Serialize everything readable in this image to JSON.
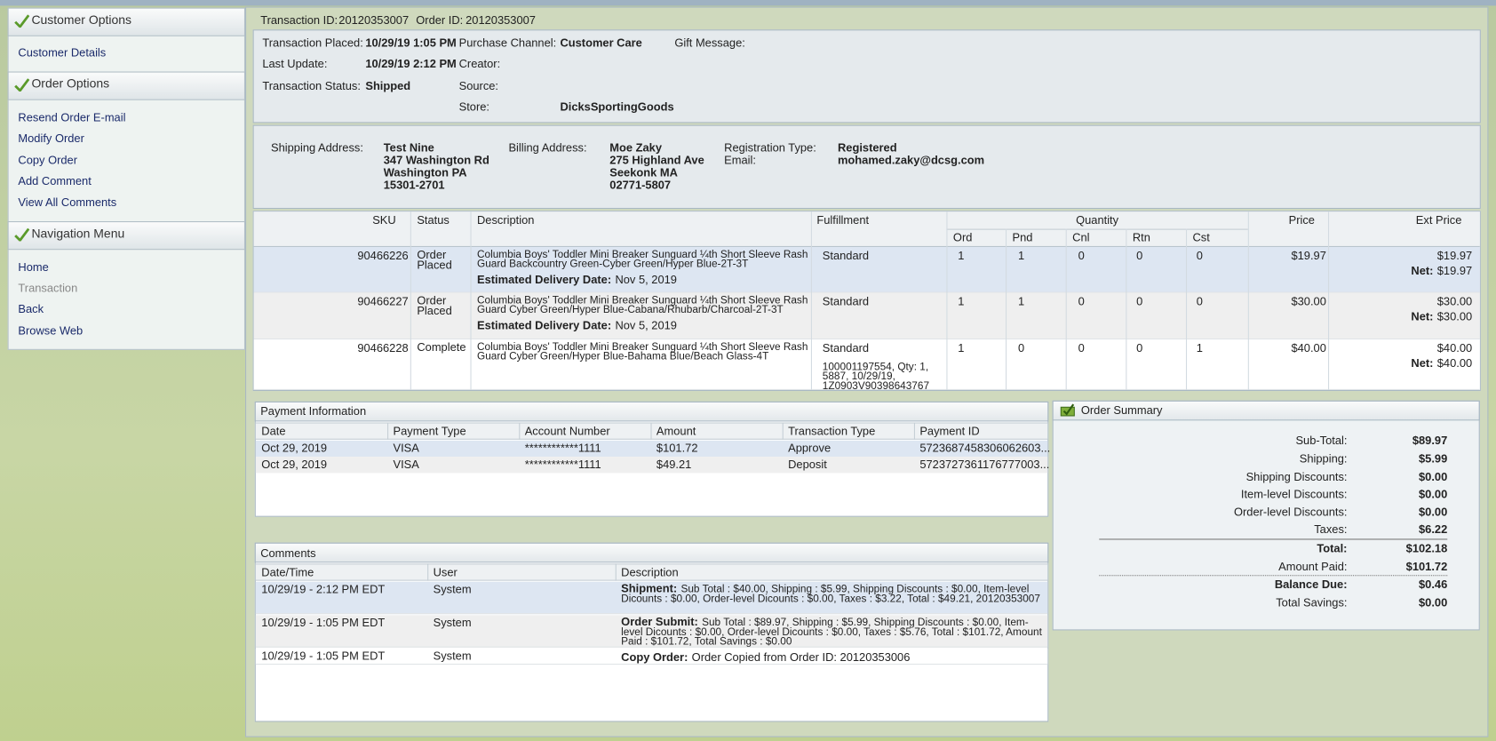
{
  "sidebar": [
    {
      "title": "Customer Options",
      "items": [
        "Customer Details"
      ]
    },
    {
      "title": "Order Options",
      "items": [
        "Resend Order E-mail",
        "Modify Order",
        "Copy Order",
        "Add Comment",
        "View All Comments"
      ]
    },
    {
      "title": "Navigation Menu",
      "items": [
        "Home",
        "Transaction",
        "Back",
        "Browse Web"
      ]
    }
  ],
  "header": {
    "transaction_id_label": "Transaction ID:",
    "transaction_id": "20120353007",
    "order_id_label": "Order ID:",
    "order_id": "20120353007"
  },
  "details": {
    "transaction_placed": {
      "label": "Transaction Placed:",
      "value": "10/29/19 1:05 PM"
    },
    "last_update": {
      "label": "Last Update:",
      "value": "10/29/19 2:12 PM"
    },
    "transaction_status": {
      "label": "Transaction Status:",
      "value": "Shipped"
    },
    "purchase_channel": {
      "label": "Purchase Channel:",
      "value": "Customer Care"
    },
    "creator": {
      "label": "Creator:"
    },
    "source": {
      "label": "Source:"
    },
    "store": {
      "label": "Store:",
      "value": "DicksSportingGoods"
    },
    "gift_message": {
      "label": "Gift Message:"
    }
  },
  "addresses": {
    "shipping": {
      "label": "Shipping Address:",
      "lines": [
        "Test Nine",
        "347 Washington Rd",
        "Washington PA",
        "15301-2701"
      ]
    },
    "billing": {
      "label": "Billing Address:",
      "lines": [
        "Moe Zaky",
        "275 Highland Ave",
        "Seekonk MA",
        "02771-5807"
      ]
    },
    "registration_type": {
      "label": "Registration Type:",
      "value": "Registered"
    },
    "email": {
      "label": "Email:",
      "value": "mohamed.zaky@dcsg.com"
    }
  },
  "items": {
    "columns": {
      "sku": "SKU",
      "status": "Status",
      "description": "Description",
      "fulfillment": "Fulfillment",
      "quantity": "Quantity",
      "price": "Price",
      "ext_price": "Ext Price"
    },
    "quantity_columns": [
      "Ord",
      "Pnd",
      "Cnl",
      "Rtn",
      "Cst"
    ],
    "rows": [
      {
        "sku": "90466226",
        "status": "Order Placed",
        "description": "Columbia Boys' Toddler Mini Breaker Sunguard ¼th Short Sleeve Rash Guard Backcountry Green-Cyber Green/Hyper Blue-2T-3T",
        "delivery_label": "Estimated Delivery Date:",
        "delivery_date": "Nov 5, 2019",
        "fulfillment": "Standard",
        "quantities": [
          "1",
          "1",
          "0",
          "0",
          "0"
        ],
        "price": "$19.97",
        "ext_price": "$19.97",
        "net_label": "Net:",
        "net": "$19.97"
      },
      {
        "sku": "90466227",
        "status": "Order Placed",
        "description": "Columbia Boys' Toddler Mini Breaker Sunguard ¼th Short Sleeve Rash Guard Cyber Green/Hyper Blue-Cabana/Rhubarb/Charcoal-2T-3T",
        "delivery_label": "Estimated Delivery Date:",
        "delivery_date": "Nov 5, 2019",
        "fulfillment": "Standard",
        "quantities": [
          "1",
          "1",
          "0",
          "0",
          "0"
        ],
        "price": "$30.00",
        "ext_price": "$30.00",
        "net_label": "Net:",
        "net": "$30.00"
      },
      {
        "sku": "90466228",
        "status": "Complete",
        "description": "Columbia Boys' Toddler Mini Breaker Sunguard ¼th Short Sleeve Rash Guard Cyber Green/Hyper Blue-Bahama Blue/Beach Glass-4T",
        "fulfillment": "Standard",
        "fulfillment_detail": "100001197554, Qty: 1, 5887, 10/29/19, 1Z0903V90398643767",
        "quantities": [
          "1",
          "0",
          "0",
          "0",
          "1"
        ],
        "price": "$40.00",
        "ext_price": "$40.00",
        "net_label": "Net:",
        "net": "$40.00"
      }
    ]
  },
  "payment": {
    "title": "Payment Information",
    "columns": [
      "Date",
      "Payment Type",
      "Account Number",
      "Amount",
      "Transaction Type",
      "Payment ID"
    ],
    "rows": [
      [
        "Oct 29, 2019",
        "VISA",
        "************1111",
        "$101.72",
        "Approve",
        "5723687458306062603..."
      ],
      [
        "Oct 29, 2019",
        "VISA",
        "************1111",
        "$49.21",
        "Deposit",
        "5723727361176777003..."
      ]
    ]
  },
  "comments": {
    "title": "Comments",
    "columns": [
      "Date/Time",
      "User",
      "Description"
    ],
    "rows": [
      {
        "datetime": "10/29/19 - 2:12 PM EDT",
        "user": "System",
        "type": "Shipment:",
        "text": "Sub Total : $40.00, Shipping : $5.99, Shipping Discounts : $0.00, Item-level Dicounts : $0.00, Order-level Dicounts : $0.00, Taxes : $3.22, Total : $49.21, 20120353007"
      },
      {
        "datetime": "10/29/19 - 1:05 PM EDT",
        "user": "System",
        "type": "Order Submit:",
        "text": "Sub Total : $89.97, Shipping : $5.99, Shipping Discounts : $0.00, Item-level Dicounts : $0.00, Order-level Dicounts : $0.00, Taxes : $5.76, Total : $101.72, Amount Paid : $101.72, Total Savings : $0.00"
      },
      {
        "datetime": "10/29/19 - 1:05 PM EDT",
        "user": "System",
        "type": "Copy Order:",
        "text": "Order Copied from Order ID: 20120353006"
      }
    ]
  },
  "summary": {
    "title": "Order Summary",
    "rows": [
      {
        "label": "Sub-Total:",
        "value": "$89.97"
      },
      {
        "label": "Shipping:",
        "value": "$5.99"
      },
      {
        "label": "Shipping Discounts:",
        "value": "$0.00"
      },
      {
        "label": "Item-level Discounts:",
        "value": "$0.00"
      },
      {
        "label": "Order-level Discounts:",
        "value": "$0.00"
      },
      {
        "label": "Taxes:",
        "value": "$6.22"
      },
      {
        "label": "Total:",
        "value": "$102.18"
      },
      {
        "label": "Amount Paid:",
        "value": "$101.72"
      },
      {
        "label": "Balance Due:",
        "value": "$0.46"
      },
      {
        "label": "Total Savings:",
        "value": "$0.00"
      }
    ]
  }
}
